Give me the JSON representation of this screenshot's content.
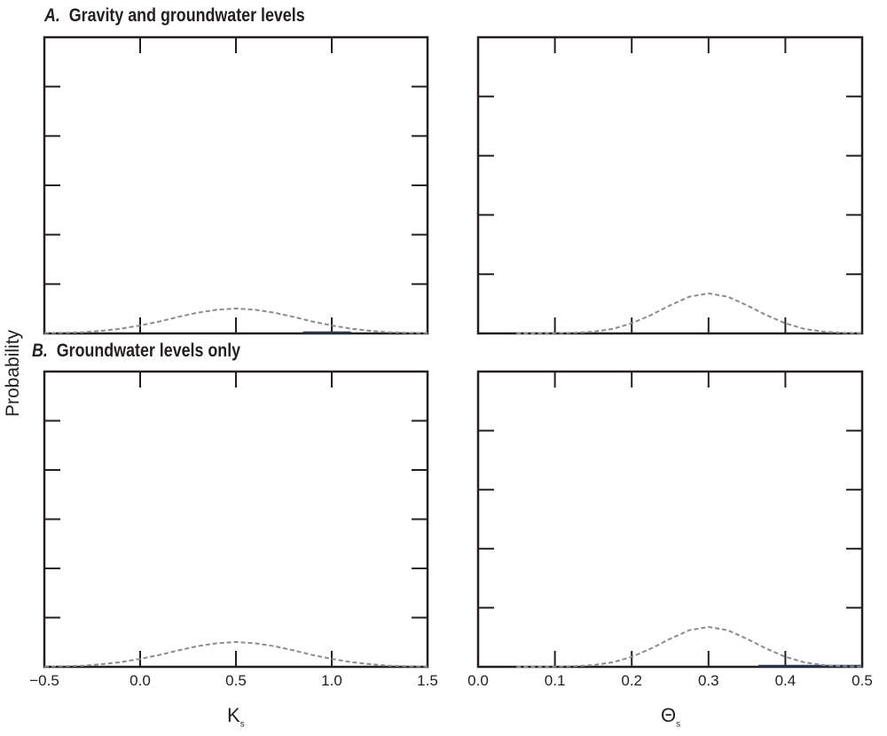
{
  "ylabel": "Probability",
  "panel_titles": [
    {
      "letter": "A.",
      "text": "Gravity and groundwater levels"
    },
    {
      "letter": "B.",
      "text": "Groundwater levels only"
    }
  ],
  "xlabels": [
    {
      "main": "K",
      "sub": "s"
    },
    {
      "main": "Θ",
      "sub": "s"
    }
  ],
  "colors": {
    "prior": "#8c8c8e",
    "posterior": "#2a3350",
    "axis": "#231f20"
  },
  "chart_data": [
    {
      "type": "line",
      "panel": "A",
      "column": "Ks",
      "xlim": [
        -0.5,
        1.5
      ],
      "ylim": [
        0,
        1
      ],
      "yticks_count": 6,
      "xticks": [
        "−0.5",
        "0.0",
        "0.5",
        "1.0",
        "1.5"
      ],
      "xtick_values": [
        -0.5,
        0,
        0.5,
        1.0,
        1.5
      ],
      "x": [
        -0.5,
        -0.4,
        -0.3,
        -0.2,
        -0.1,
        0,
        0.1,
        0.2,
        0.3,
        0.4,
        0.5,
        0.6,
        0.7,
        0.8,
        0.9,
        1.0,
        1.1,
        1.2,
        1.3,
        1.4,
        1.5
      ],
      "series": [
        {
          "style": "dashed",
          "values": [
            0.001,
            0.002,
            0.004,
            0.009,
            0.016,
            0.027,
            0.04,
            0.056,
            0.07,
            0.08,
            0.084,
            0.08,
            0.07,
            0.056,
            0.04,
            0.027,
            0.016,
            0.009,
            0.004,
            0.002,
            0.001
          ]
        }
      ],
      "posterior_range": [
        0.85,
        1.1
      ]
    },
    {
      "type": "line",
      "panel": "A",
      "column": "Theta_s",
      "xlim": [
        0,
        0.5
      ],
      "ylim": [
        0,
        1
      ],
      "yticks_count": 5,
      "xticks": [
        "0.0",
        "0.1",
        "0.2",
        "0.3",
        "0.4",
        "0.5"
      ],
      "xtick_values": [
        0,
        0.1,
        0.2,
        0.3,
        0.4,
        0.5
      ],
      "x": [
        0.05,
        0.075,
        0.1,
        0.125,
        0.15,
        0.175,
        0.2,
        0.225,
        0.25,
        0.275,
        0.3,
        0.325,
        0.35,
        0.375,
        0.4,
        0.425,
        0.45,
        0.475,
        0.5
      ],
      "series": [
        {
          "style": "dashed",
          "values": [
            0.0,
            0.0,
            0.001,
            0.002,
            0.006,
            0.015,
            0.034,
            0.062,
            0.095,
            0.124,
            0.135,
            0.124,
            0.095,
            0.062,
            0.034,
            0.015,
            0.006,
            0.002,
            0.001
          ]
        }
      ],
      "posterior_range": null
    },
    {
      "type": "line",
      "panel": "B",
      "column": "Ks",
      "xlim": [
        -0.5,
        1.5
      ],
      "ylim": [
        0,
        1
      ],
      "yticks_count": 6,
      "xticks": [
        "−0.5",
        "0.0",
        "0.5",
        "1.0",
        "1.5"
      ],
      "xtick_values": [
        -0.5,
        0,
        0.5,
        1.0,
        1.5
      ],
      "x": [
        -0.5,
        -0.4,
        -0.3,
        -0.2,
        -0.1,
        0,
        0.1,
        0.2,
        0.3,
        0.4,
        0.5,
        0.6,
        0.7,
        0.8,
        0.9,
        1.0,
        1.1,
        1.2,
        1.3,
        1.4,
        1.5
      ],
      "series": [
        {
          "style": "dashed",
          "values": [
            0.001,
            0.002,
            0.004,
            0.009,
            0.016,
            0.027,
            0.04,
            0.056,
            0.07,
            0.08,
            0.084,
            0.08,
            0.07,
            0.056,
            0.04,
            0.027,
            0.016,
            0.009,
            0.004,
            0.002,
            0.001
          ]
        }
      ],
      "posterior_range": null
    },
    {
      "type": "line",
      "panel": "B",
      "column": "Theta_s",
      "xlim": [
        0,
        0.5
      ],
      "ylim": [
        0,
        1
      ],
      "yticks_count": 5,
      "xticks": [
        "0.0",
        "0.1",
        "0.2",
        "0.3",
        "0.4",
        "0.5"
      ],
      "xtick_values": [
        0,
        0.1,
        0.2,
        0.3,
        0.4,
        0.5
      ],
      "x": [
        0.05,
        0.075,
        0.1,
        0.125,
        0.15,
        0.175,
        0.2,
        0.225,
        0.25,
        0.275,
        0.3,
        0.325,
        0.35,
        0.375,
        0.4,
        0.425,
        0.45,
        0.475,
        0.5
      ],
      "series": [
        {
          "style": "dashed",
          "values": [
            0.0,
            0.0,
            0.001,
            0.002,
            0.006,
            0.015,
            0.034,
            0.062,
            0.095,
            0.124,
            0.135,
            0.124,
            0.095,
            0.062,
            0.034,
            0.015,
            0.006,
            0.002,
            0.001
          ]
        }
      ],
      "posterior_range": [
        0.365,
        0.5
      ]
    }
  ]
}
